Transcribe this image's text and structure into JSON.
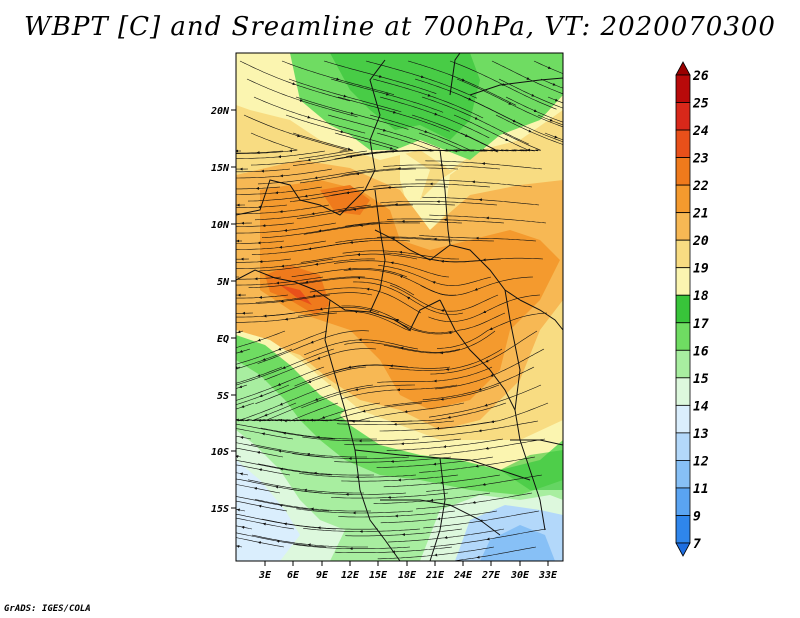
{
  "title": "WBPT [C] and Sreamline at 700hPa, VT: 2020070300",
  "credit": "GrADS: IGES/COLA",
  "map": {
    "lat_ticks": [
      "20N",
      "15N",
      "10N",
      "5N",
      "EQ",
      "5S",
      "10S",
      "15S"
    ],
    "lon_ticks": [
      "3E",
      "6E",
      "9E",
      "12E",
      "15E",
      "18E",
      "21E",
      "24E",
      "27E",
      "30E",
      "33E"
    ],
    "extent": {
      "lon_min": 0,
      "lon_max": 34.5,
      "lat_min": -20.5,
      "lat_max": 24.5
    }
  },
  "colorbar": {
    "levels": [
      "7",
      "9",
      "11",
      "12",
      "13",
      "14",
      "15",
      "16",
      "17",
      "18",
      "19",
      "20",
      "21",
      "22",
      "23",
      "24",
      "25",
      "26"
    ],
    "colors": [
      "#1e6ee0",
      "#2f86ec",
      "#5aa4f2",
      "#87c0f6",
      "#b3d8fa",
      "#daeefd",
      "#ddf8dd",
      "#a8eea0",
      "#6fdc62",
      "#38c43a",
      "#fbf5b0",
      "#f8dc82",
      "#f7b854",
      "#f49a2e",
      "#ef7a1c",
      "#e8501a",
      "#d8281a",
      "#b80a0a",
      "#9a0000"
    ]
  },
  "chart_data": {
    "type": "heatmap",
    "title": "WBPT [C] and Sreamline at 700hPa, VT: 2020070300",
    "x_ticks": [
      "3E",
      "6E",
      "9E",
      "12E",
      "15E",
      "18E",
      "21E",
      "24E",
      "27E",
      "30E",
      "33E"
    ],
    "y_ticks": [
      "20N",
      "15N",
      "10N",
      "5N",
      "EQ",
      "5S",
      "10S",
      "15S"
    ],
    "color_levels": [
      7,
      9,
      11,
      12,
      13,
      14,
      15,
      16,
      17,
      18,
      19,
      20,
      21,
      22,
      23,
      24,
      25,
      26
    ]
  }
}
